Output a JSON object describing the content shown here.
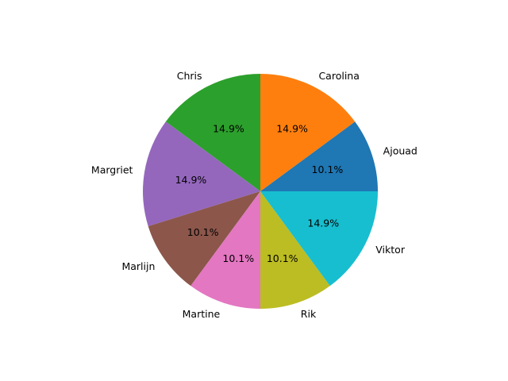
{
  "chart_data": {
    "type": "pie",
    "title": "",
    "start_angle_deg": 0,
    "direction": "counterclockwise",
    "slices": [
      {
        "label": "Ajouad",
        "value": 10.1,
        "pct_label": "10.1%",
        "color": "#1f77b4"
      },
      {
        "label": "Carolina",
        "value": 14.9,
        "pct_label": "14.9%",
        "color": "#ff7f0e"
      },
      {
        "label": "Chris",
        "value": 14.9,
        "pct_label": "14.9%",
        "color": "#2ca02c"
      },
      {
        "label": "Margriet",
        "value": 14.9,
        "pct_label": "14.9%",
        "color": "#9467bd"
      },
      {
        "label": "Marlijn",
        "value": 10.1,
        "pct_label": "10.1%",
        "color": "#8c564b"
      },
      {
        "label": "Martine",
        "value": 10.1,
        "pct_label": "10.1%",
        "color": "#e377c2"
      },
      {
        "label": "Rik",
        "value": 10.1,
        "pct_label": "10.1%",
        "color": "#bcbd22"
      },
      {
        "label": "Viktor",
        "value": 14.9,
        "pct_label": "14.9%",
        "color": "#17becf"
      }
    ]
  }
}
